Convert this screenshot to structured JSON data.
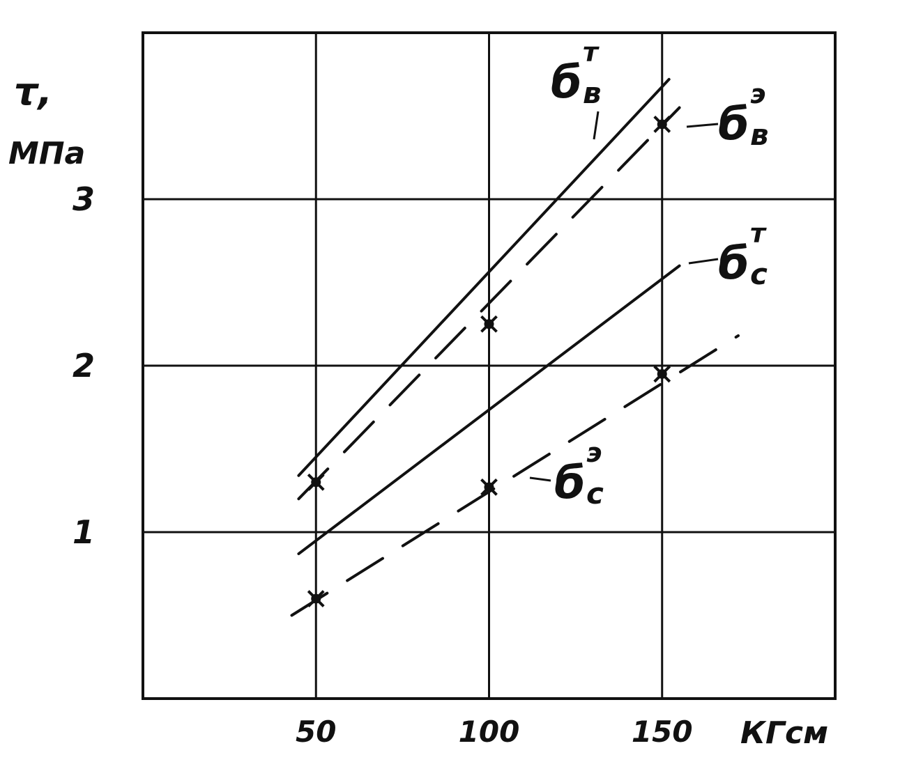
{
  "chart_data": {
    "type": "line",
    "ylabel": "τ,",
    "yunit": "МПа",
    "xunit": "КГсм",
    "xlim": [
      0,
      200
    ],
    "ylim": [
      0,
      4
    ],
    "grid": true,
    "x_ticks": [
      50,
      100,
      150
    ],
    "x_tick_labels": [
      "50",
      "100",
      "150"
    ],
    "y_ticks": [
      1,
      2,
      3
    ],
    "y_tick_labels": [
      "1",
      "2",
      "3"
    ],
    "series": [
      {
        "name": "б",
        "sub": "в",
        "sup": "т",
        "style": "solid",
        "markers": false,
        "x": [
          45,
          152
        ],
        "y": [
          1.34,
          3.72
        ]
      },
      {
        "name": "б",
        "sub": "в",
        "sup": "э",
        "style": "dashed",
        "markers": true,
        "x": [
          45,
          155
        ],
        "y": [
          1.2,
          3.55
        ],
        "points": {
          "x": [
            50,
            100,
            150
          ],
          "y": [
            1.3,
            2.25,
            3.45
          ]
        }
      },
      {
        "name": "б",
        "sub": "с",
        "sup": "т",
        "style": "solid",
        "markers": false,
        "x": [
          45,
          155
        ],
        "y": [
          0.87,
          2.6
        ]
      },
      {
        "name": "б",
        "sub": "с",
        "sup": "э",
        "style": "dashed",
        "markers": true,
        "x": [
          43,
          172
        ],
        "y": [
          0.5,
          2.18
        ],
        "points": {
          "x": [
            50,
            100,
            150
          ],
          "y": [
            0.6,
            1.27,
            1.95
          ]
        }
      }
    ]
  }
}
